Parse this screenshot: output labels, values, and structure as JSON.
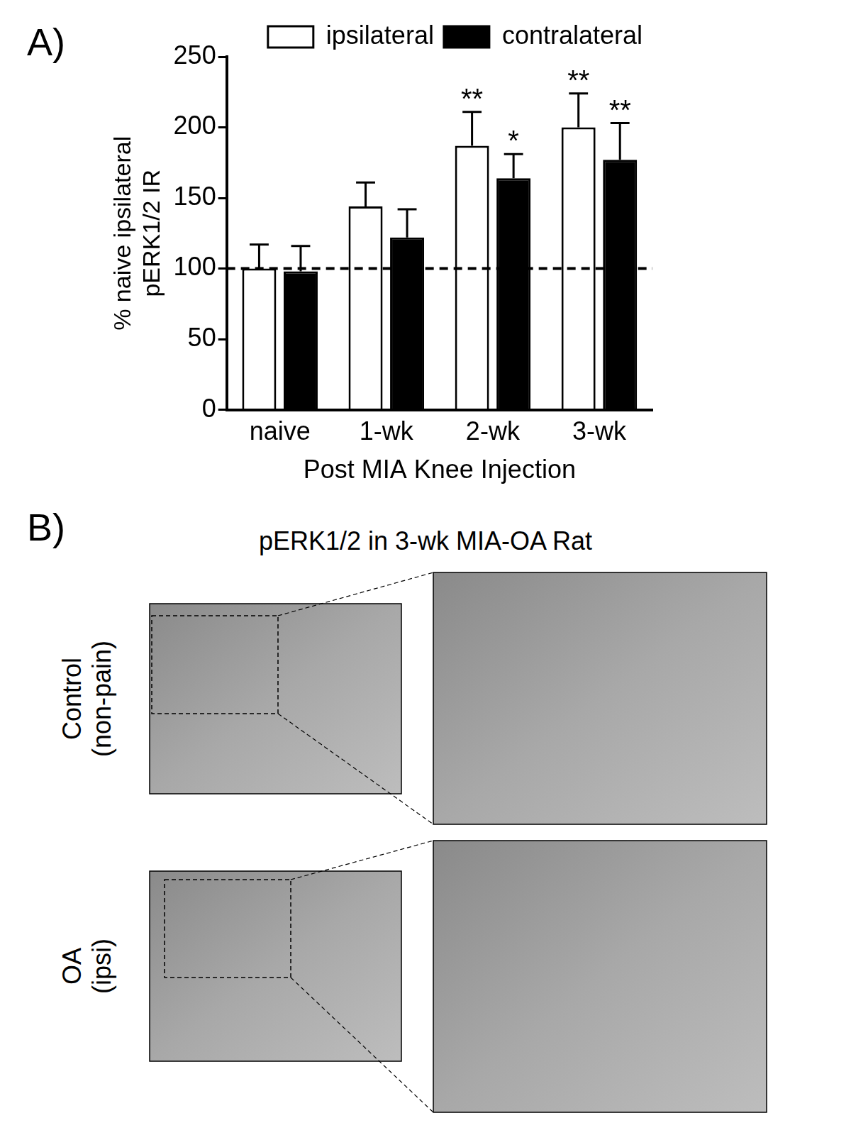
{
  "chart_data": {
    "type": "bar",
    "panel_label": "A)",
    "categories": [
      "naive",
      "1-wk",
      "2-wk",
      "3-wk"
    ],
    "series": [
      {
        "name": "ipsilateral",
        "color": "#ffffff",
        "values": [
          100,
          144,
          187,
          200
        ],
        "errors": [
          17,
          17,
          24,
          24
        ],
        "significance": [
          null,
          null,
          "**",
          "**"
        ]
      },
      {
        "name": "contralateral",
        "color": "#000000",
        "values": [
          98,
          122,
          164,
          177
        ],
        "errors": [
          18,
          20,
          17,
          26
        ],
        "significance": [
          null,
          null,
          "*",
          "**"
        ]
      }
    ],
    "y_label": [
      "% naive ipsilateral",
      "pERK1/2 IR"
    ],
    "x_label": "Post MIA Knee Injection",
    "ylim": [
      0,
      250
    ],
    "yticks": [
      0,
      50,
      100,
      150,
      200,
      250
    ],
    "reference_line": 100,
    "grid": false,
    "legend": "top"
  },
  "panel_b": {
    "label": "B)",
    "title": "pERK1/2 in 3-wk MIA-OA Rat",
    "rows": [
      {
        "label": [
          "Control",
          "(non-pain)"
        ]
      },
      {
        "label": [
          "OA",
          "(ipsi)"
        ]
      }
    ]
  }
}
